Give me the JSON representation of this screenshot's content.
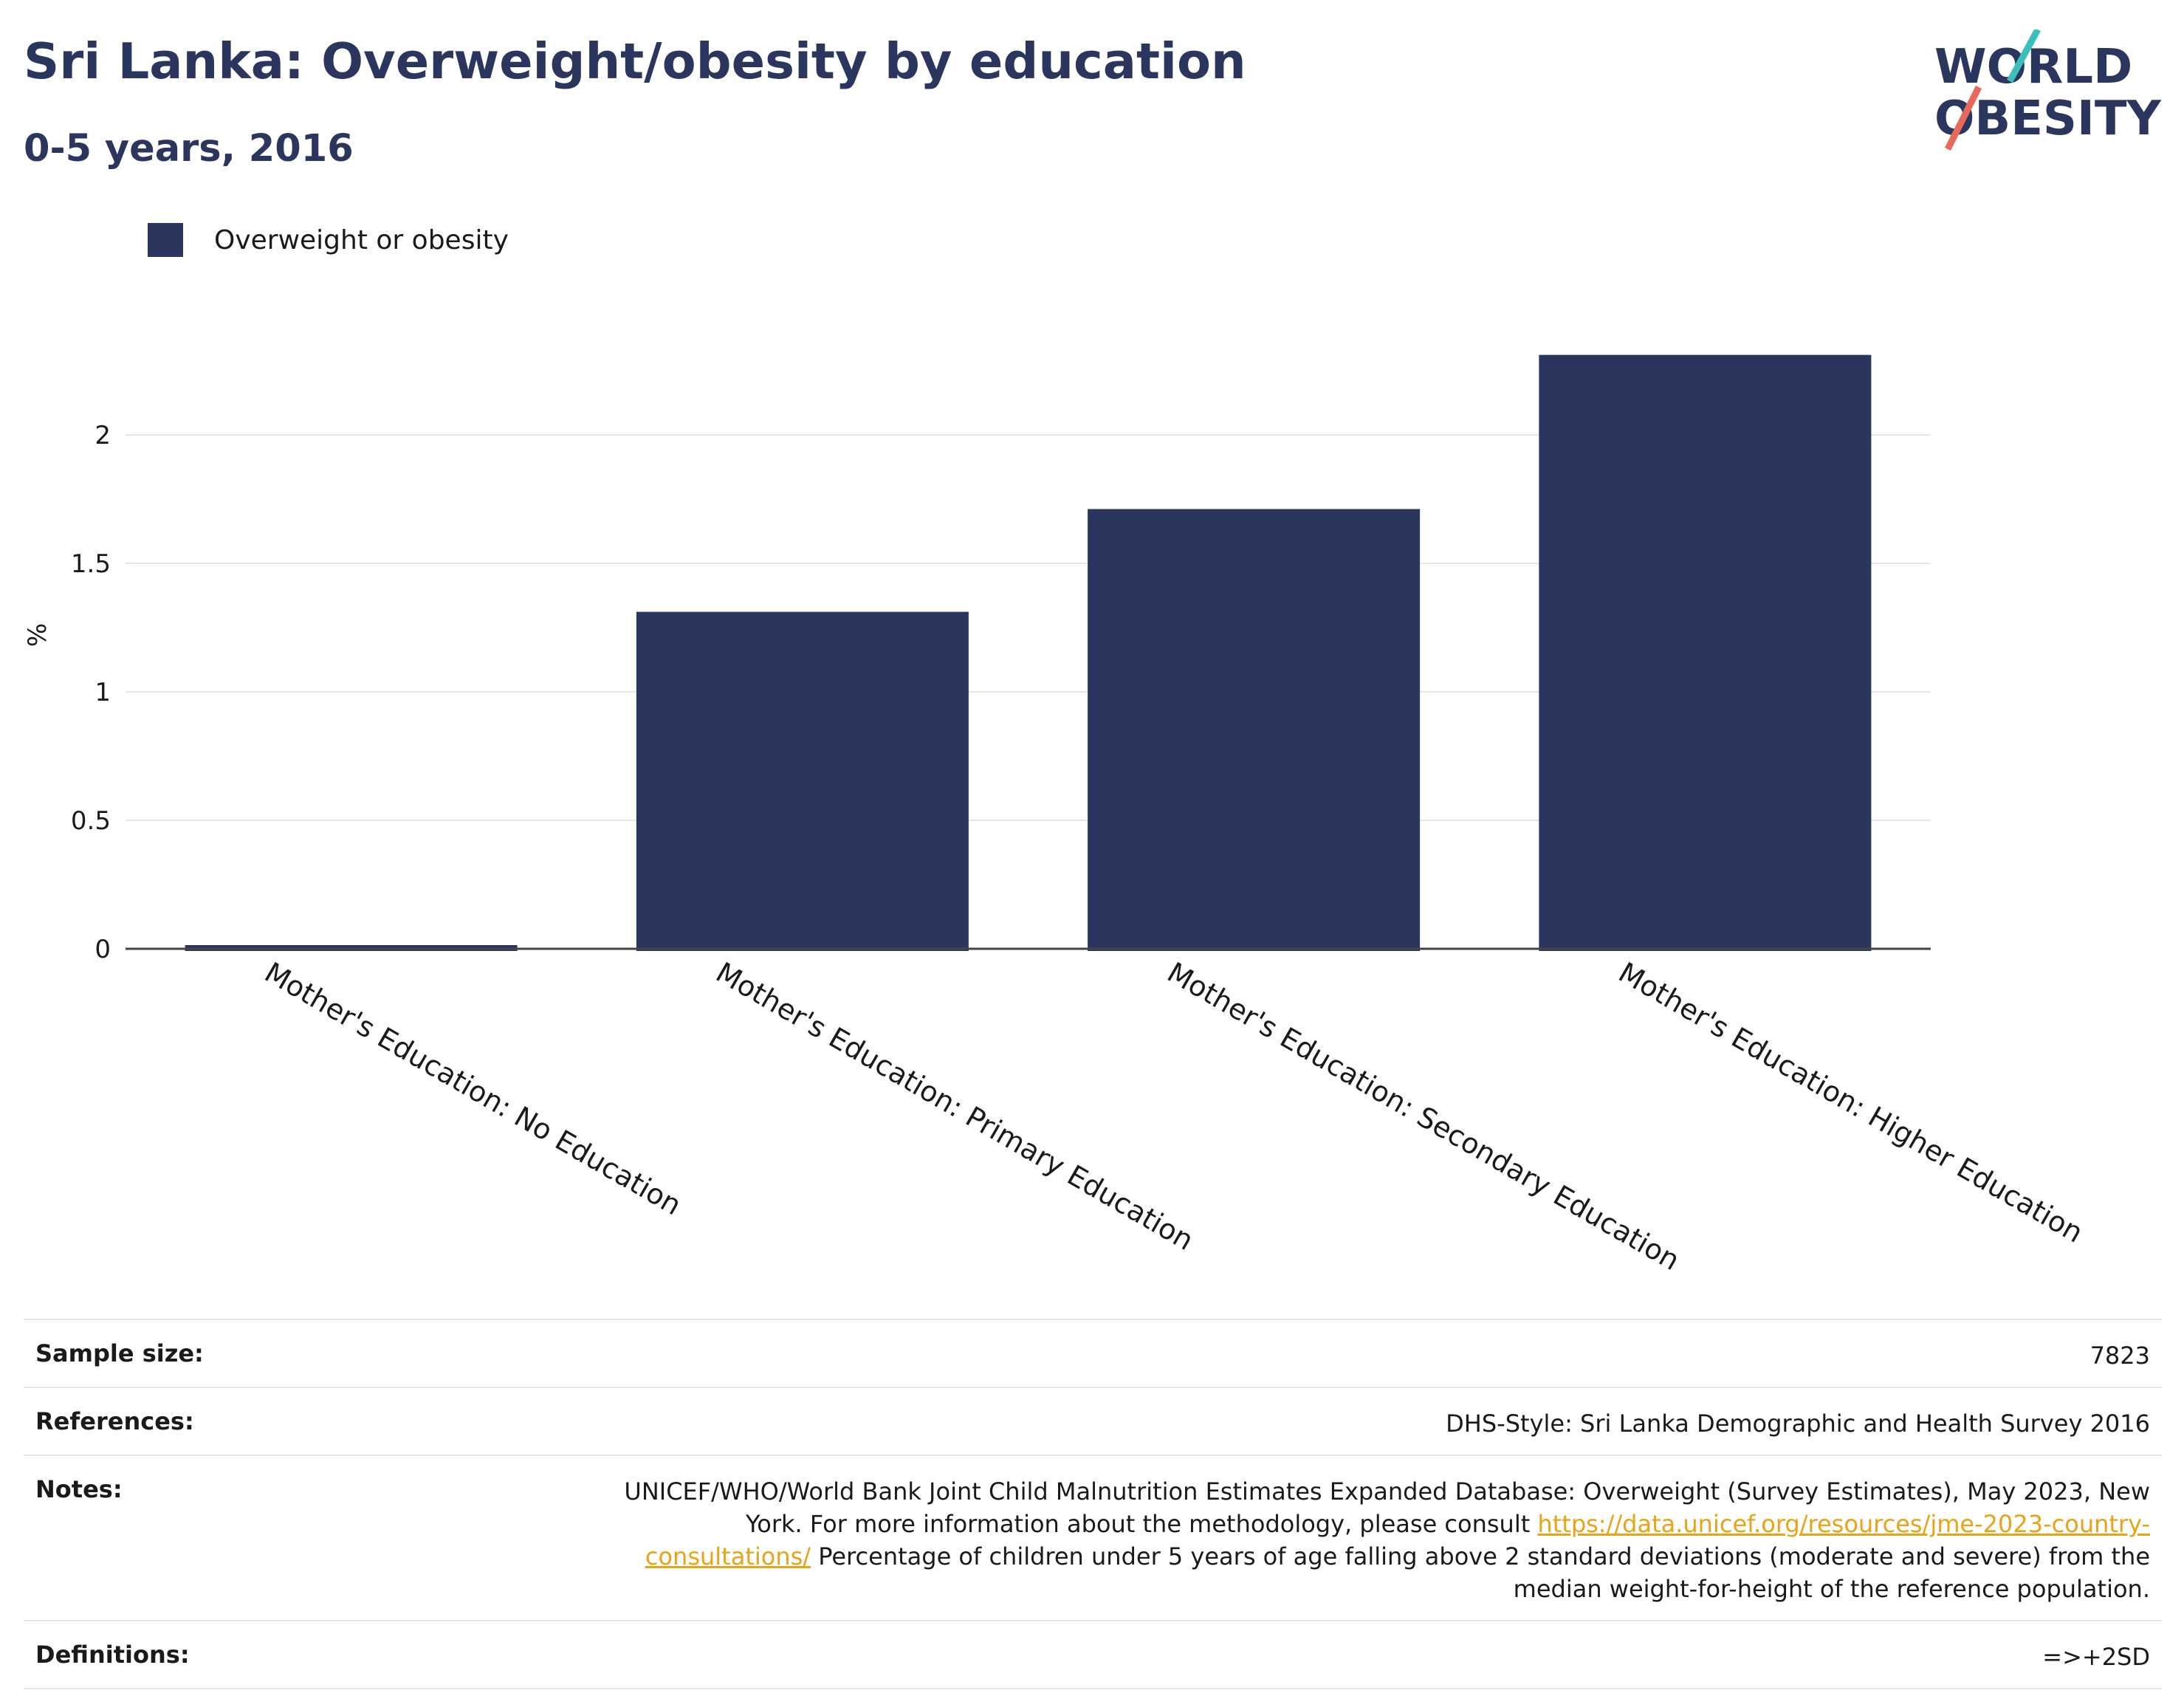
{
  "header": {
    "title": "Sri Lanka: Overweight/obesity by education",
    "subtitle": "0-5 years, 2016",
    "logo_line1": "WORLD",
    "logo_line2": "OBESITY"
  },
  "legend": {
    "label": "Overweight or obesity"
  },
  "colors": {
    "bar": "#2b365f",
    "title": "#2b365f",
    "grid": "#e6e6e6",
    "link": "#e8a317",
    "logo_teal": "#3bbfbd",
    "logo_red": "#e8685a"
  },
  "chart_data": {
    "type": "bar",
    "ylabel": "%",
    "ylim": [
      0,
      2.4
    ],
    "yticks": [
      "0",
      "0.5",
      "1",
      "1.5",
      "2"
    ],
    "yticks_values": [
      0,
      0.5,
      1,
      1.5,
      2
    ],
    "grid": true,
    "legend_position": "top-left",
    "categories": [
      "Mother's Education: No Education",
      "Mother's Education: Primary Education",
      "Mother's Education: Secondary Education",
      "Mother's Education: Higher Education"
    ],
    "series": [
      {
        "name": "Overweight or obesity",
        "values": [
          0.01,
          1.32,
          1.72,
          2.32
        ]
      }
    ]
  },
  "meta": {
    "sample_size_label": "Sample size:",
    "sample_size_value": "7823",
    "references_label": "References:",
    "references_value": "DHS-Style: Sri Lanka Demographic and Health Survey 2016",
    "notes_label": "Notes:",
    "notes_text1": "UNICEF/WHO/World Bank Joint Child Malnutrition Estimates Expanded Database: Overweight (Survey Estimates), May 2023, New York. For more information about the methodology, please consult ",
    "notes_link": "https://data.unicef.org/resources/jme-2023-country-consultations/",
    "notes_text2": " Percentage of children under 5 years of age falling above 2 standard deviations (moderate and severe) from the median weight-for-height of the reference population.",
    "definitions_label": "Definitions:",
    "definitions_value": "=>+2SD"
  }
}
